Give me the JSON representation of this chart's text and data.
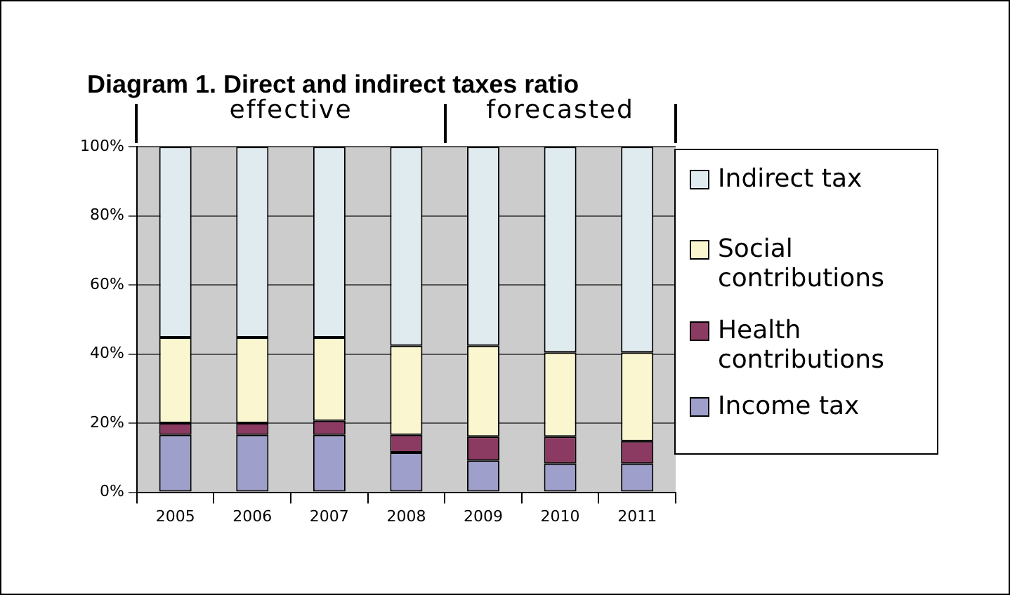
{
  "chart_data": {
    "type": "bar",
    "title": "Diagram 1. Direct and indirect taxes ratio",
    "stacked": true,
    "categories": [
      "2005",
      "2006",
      "2007",
      "2008",
      "2009",
      "2010",
      "2011"
    ],
    "series": [
      {
        "name": "Income tax",
        "color": "#9f9fcc",
        "values": [
          16.6,
          16.6,
          16.6,
          11.5,
          9.2,
          8.3,
          8.3
        ]
      },
      {
        "name": "Health contributions",
        "color": "#8b3a62",
        "values": [
          3.4,
          3.4,
          4.1,
          5.1,
          6.9,
          7.8,
          6.5
        ]
      },
      {
        "name": "Social contributions",
        "color": "#faf7d0",
        "values": [
          24.8,
          24.8,
          24.1,
          25.8,
          26.3,
          24.4,
          25.7
        ]
      },
      {
        "name": "Indirect tax",
        "color": "#e0ebf0",
        "values": [
          55.2,
          55.2,
          55.2,
          57.6,
          57.6,
          59.5,
          59.5
        ]
      }
    ],
    "ylim": [
      0,
      100
    ],
    "yticks": [
      {
        "value": 0,
        "label": "0%"
      },
      {
        "value": 20,
        "label": "20%"
      },
      {
        "value": 40,
        "label": "40%"
      },
      {
        "value": 60,
        "label": "60%"
      },
      {
        "value": 80,
        "label": "80%"
      },
      {
        "value": 100,
        "label": "100%"
      }
    ],
    "grid": "y",
    "legend": "right",
    "annotations": [
      "effective",
      "forecasted"
    ]
  }
}
